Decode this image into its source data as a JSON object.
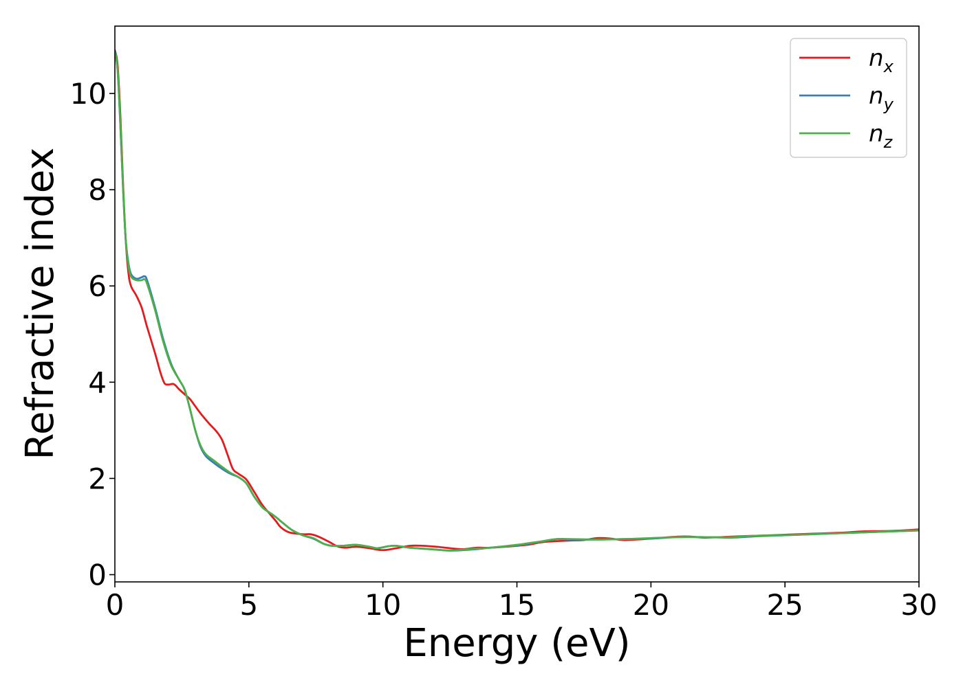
{
  "chart_data": {
    "type": "line",
    "title": "",
    "xlabel": "Energy (eV)",
    "ylabel": "Refractive index",
    "xlim": [
      0,
      30
    ],
    "ylim": [
      -0.15,
      11.4
    ],
    "xticks": [
      0,
      5,
      10,
      15,
      20,
      25,
      30
    ],
    "yticks": [
      0,
      2,
      4,
      6,
      8,
      10
    ],
    "grid": false,
    "legend_position": "top-right",
    "series": [
      {
        "name": "n",
        "subscript": "x",
        "color": "#e41a1c",
        "points": [
          [
            0.0,
            10.9
          ],
          [
            0.1,
            10.6
          ],
          [
            0.2,
            9.6
          ],
          [
            0.3,
            8.2
          ],
          [
            0.4,
            7.0
          ],
          [
            0.5,
            6.3
          ],
          [
            0.6,
            6.0
          ],
          [
            0.8,
            5.8
          ],
          [
            1.0,
            5.55
          ],
          [
            1.2,
            5.15
          ],
          [
            1.5,
            4.6
          ],
          [
            1.7,
            4.2
          ],
          [
            1.85,
            3.98
          ],
          [
            2.0,
            3.95
          ],
          [
            2.2,
            3.96
          ],
          [
            2.4,
            3.85
          ],
          [
            2.6,
            3.75
          ],
          [
            2.8,
            3.65
          ],
          [
            3.0,
            3.5
          ],
          [
            3.2,
            3.35
          ],
          [
            3.5,
            3.15
          ],
          [
            3.8,
            2.97
          ],
          [
            4.0,
            2.8
          ],
          [
            4.2,
            2.5
          ],
          [
            4.4,
            2.2
          ],
          [
            4.6,
            2.1
          ],
          [
            4.9,
            1.98
          ],
          [
            5.2,
            1.72
          ],
          [
            5.5,
            1.45
          ],
          [
            5.8,
            1.25
          ],
          [
            6.0,
            1.12
          ],
          [
            6.2,
            0.98
          ],
          [
            6.5,
            0.88
          ],
          [
            7.0,
            0.84
          ],
          [
            7.3,
            0.84
          ],
          [
            7.6,
            0.79
          ],
          [
            8.0,
            0.68
          ],
          [
            8.3,
            0.59
          ],
          [
            8.6,
            0.56
          ],
          [
            9.0,
            0.58
          ],
          [
            9.5,
            0.55
          ],
          [
            10.0,
            0.51
          ],
          [
            10.5,
            0.55
          ],
          [
            11.0,
            0.6
          ],
          [
            11.5,
            0.6
          ],
          [
            12.0,
            0.58
          ],
          [
            12.5,
            0.55
          ],
          [
            13.0,
            0.53
          ],
          [
            13.5,
            0.56
          ],
          [
            14.0,
            0.56
          ],
          [
            15.0,
            0.6
          ],
          [
            15.5,
            0.63
          ],
          [
            16.0,
            0.68
          ],
          [
            17.0,
            0.71
          ],
          [
            17.5,
            0.72
          ],
          [
            18.0,
            0.76
          ],
          [
            18.5,
            0.75
          ],
          [
            19.0,
            0.72
          ],
          [
            20.0,
            0.75
          ],
          [
            21.0,
            0.79
          ],
          [
            21.5,
            0.79
          ],
          [
            22.0,
            0.77
          ],
          [
            23.0,
            0.79
          ],
          [
            24.0,
            0.81
          ],
          [
            25.0,
            0.83
          ],
          [
            26.0,
            0.85
          ],
          [
            27.0,
            0.87
          ],
          [
            28.0,
            0.9
          ],
          [
            29.0,
            0.91
          ],
          [
            30.0,
            0.94
          ]
        ]
      },
      {
        "name": "n",
        "subscript": "y",
        "color": "#377eb8",
        "points": [
          [
            0.0,
            10.9
          ],
          [
            0.1,
            10.5
          ],
          [
            0.2,
            9.4
          ],
          [
            0.3,
            8.1
          ],
          [
            0.4,
            7.0
          ],
          [
            0.5,
            6.5
          ],
          [
            0.6,
            6.25
          ],
          [
            0.8,
            6.15
          ],
          [
            1.0,
            6.18
          ],
          [
            1.1,
            6.2
          ],
          [
            1.2,
            6.12
          ],
          [
            1.5,
            5.55
          ],
          [
            1.8,
            4.9
          ],
          [
            2.1,
            4.38
          ],
          [
            2.4,
            4.05
          ],
          [
            2.6,
            3.85
          ],
          [
            2.8,
            3.45
          ],
          [
            3.0,
            3.0
          ],
          [
            3.2,
            2.65
          ],
          [
            3.4,
            2.46
          ],
          [
            3.7,
            2.32
          ],
          [
            4.0,
            2.2
          ],
          [
            4.3,
            2.1
          ],
          [
            4.6,
            2.03
          ],
          [
            4.9,
            1.9
          ],
          [
            5.2,
            1.62
          ],
          [
            5.5,
            1.4
          ],
          [
            5.8,
            1.28
          ],
          [
            6.0,
            1.2
          ],
          [
            6.3,
            1.06
          ],
          [
            6.6,
            0.93
          ],
          [
            7.0,
            0.82
          ],
          [
            7.4,
            0.75
          ],
          [
            7.8,
            0.64
          ],
          [
            8.1,
            0.6
          ],
          [
            8.5,
            0.6
          ],
          [
            9.0,
            0.62
          ],
          [
            9.5,
            0.58
          ],
          [
            9.8,
            0.55
          ],
          [
            10.2,
            0.59
          ],
          [
            10.5,
            0.6
          ],
          [
            11.0,
            0.56
          ],
          [
            11.5,
            0.54
          ],
          [
            12.0,
            0.52
          ],
          [
            12.5,
            0.5
          ],
          [
            13.0,
            0.51
          ],
          [
            13.5,
            0.53
          ],
          [
            14.0,
            0.56
          ],
          [
            15.0,
            0.61
          ],
          [
            15.5,
            0.65
          ],
          [
            16.0,
            0.7
          ],
          [
            16.5,
            0.74
          ],
          [
            17.0,
            0.73
          ],
          [
            18.0,
            0.73
          ],
          [
            19.0,
            0.74
          ],
          [
            20.0,
            0.75
          ],
          [
            21.0,
            0.78
          ],
          [
            22.0,
            0.78
          ],
          [
            23.0,
            0.77
          ],
          [
            24.0,
            0.8
          ],
          [
            25.0,
            0.82
          ],
          [
            26.0,
            0.84
          ],
          [
            27.0,
            0.86
          ],
          [
            28.0,
            0.88
          ],
          [
            29.0,
            0.9
          ],
          [
            30.0,
            0.92
          ]
        ]
      },
      {
        "name": "n",
        "subscript": "z",
        "color": "#4daf4a",
        "points": [
          [
            0.0,
            10.85
          ],
          [
            0.1,
            10.5
          ],
          [
            0.2,
            9.4
          ],
          [
            0.3,
            8.1
          ],
          [
            0.4,
            7.0
          ],
          [
            0.5,
            6.45
          ],
          [
            0.6,
            6.2
          ],
          [
            0.8,
            6.12
          ],
          [
            1.0,
            6.12
          ],
          [
            1.1,
            6.14
          ],
          [
            1.2,
            6.05
          ],
          [
            1.5,
            5.5
          ],
          [
            1.8,
            4.85
          ],
          [
            2.1,
            4.35
          ],
          [
            2.4,
            4.05
          ],
          [
            2.6,
            3.85
          ],
          [
            2.8,
            3.45
          ],
          [
            3.0,
            3.0
          ],
          [
            3.2,
            2.68
          ],
          [
            3.4,
            2.5
          ],
          [
            3.7,
            2.37
          ],
          [
            4.0,
            2.24
          ],
          [
            4.3,
            2.12
          ],
          [
            4.6,
            2.03
          ],
          [
            4.9,
            1.9
          ],
          [
            5.2,
            1.62
          ],
          [
            5.5,
            1.4
          ],
          [
            5.8,
            1.28
          ],
          [
            6.0,
            1.2
          ],
          [
            6.3,
            1.06
          ],
          [
            6.6,
            0.93
          ],
          [
            7.0,
            0.82
          ],
          [
            7.4,
            0.76
          ],
          [
            7.8,
            0.64
          ],
          [
            8.1,
            0.6
          ],
          [
            8.5,
            0.6
          ],
          [
            9.0,
            0.62
          ],
          [
            9.5,
            0.58
          ],
          [
            9.8,
            0.55
          ],
          [
            10.2,
            0.59
          ],
          [
            10.5,
            0.6
          ],
          [
            11.0,
            0.56
          ],
          [
            11.5,
            0.54
          ],
          [
            12.0,
            0.52
          ],
          [
            12.5,
            0.5
          ],
          [
            13.0,
            0.52
          ],
          [
            13.5,
            0.54
          ],
          [
            14.0,
            0.56
          ],
          [
            15.0,
            0.62
          ],
          [
            15.5,
            0.66
          ],
          [
            16.0,
            0.7
          ],
          [
            16.5,
            0.74
          ],
          [
            17.0,
            0.74
          ],
          [
            18.0,
            0.73
          ],
          [
            19.0,
            0.74
          ],
          [
            20.0,
            0.76
          ],
          [
            21.0,
            0.78
          ],
          [
            22.0,
            0.78
          ],
          [
            23.0,
            0.78
          ],
          [
            24.0,
            0.81
          ],
          [
            25.0,
            0.82
          ],
          [
            26.0,
            0.84
          ],
          [
            27.0,
            0.86
          ],
          [
            28.0,
            0.88
          ],
          [
            29.0,
            0.9
          ],
          [
            30.0,
            0.92
          ]
        ]
      }
    ]
  }
}
